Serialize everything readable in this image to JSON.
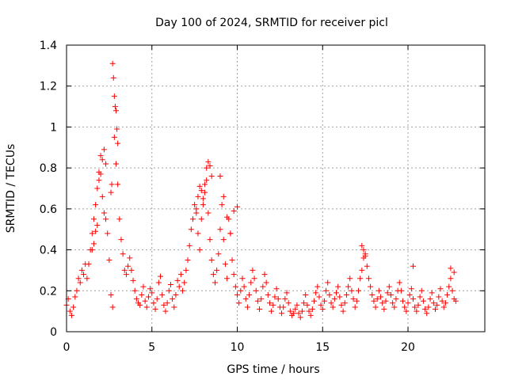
{
  "chart_data": {
    "type": "scatter",
    "title": "Day 100 of 2024, SRMTID for receiver picl",
    "xlabel": "GPS time / hours",
    "ylabel": "SRMTID / TECUs",
    "xlim": [
      0,
      24.5
    ],
    "ylim": [
      0,
      1.4
    ],
    "xticks": [
      0,
      5,
      10,
      15,
      20
    ],
    "xtick_labels": [
      "0",
      "5",
      "10",
      "15",
      "20"
    ],
    "yticks": [
      0,
      0.2,
      0.4,
      0.6,
      0.8,
      1,
      1.2,
      1.4
    ],
    "ytick_labels": [
      "0",
      "0.2",
      "0.4",
      "0.6",
      "0.8",
      "1",
      "1.2",
      "1.4"
    ],
    "grid": true,
    "marker": "+",
    "series_color": "#ff0000",
    "series": [
      {
        "name": "SRMTID",
        "x": [
          0.0,
          0.1,
          0.2,
          0.3,
          0.4,
          0.5,
          0.6,
          0.7,
          0.8,
          0.9,
          1.0,
          1.1,
          1.2,
          1.3,
          1.4,
          1.5,
          1.6,
          1.7,
          1.8,
          1.9,
          2.0,
          2.1,
          2.2,
          2.3,
          2.4,
          2.5,
          2.6,
          2.7,
          2.8,
          2.9,
          3.0,
          3.1,
          3.2,
          3.3,
          3.4,
          3.5,
          3.6,
          3.7,
          3.8,
          3.9,
          4.0,
          4.1,
          4.2,
          4.3,
          4.4,
          4.5,
          4.6,
          4.7,
          4.8,
          4.9,
          5.0,
          5.1,
          5.2,
          5.3,
          5.4,
          5.5,
          5.6,
          5.7,
          5.8,
          5.9,
          6.0,
          6.1,
          6.2,
          6.3,
          6.4,
          6.5,
          6.6,
          6.7,
          6.8,
          6.9,
          7.0,
          7.1,
          7.2,
          7.3,
          7.4,
          7.5,
          7.6,
          7.7,
          7.8,
          7.9,
          8.0,
          8.1,
          8.2,
          8.3,
          8.4,
          8.5,
          8.6,
          8.7,
          8.8,
          8.9,
          9.0,
          9.1,
          9.2,
          9.3,
          9.4,
          9.5,
          9.6,
          9.7,
          9.8,
          9.9,
          10.0,
          10.1,
          10.2,
          10.3,
          10.4,
          10.5,
          10.6,
          10.7,
          10.8,
          10.9,
          11.0,
          11.1,
          11.2,
          11.3,
          11.4,
          11.5,
          11.6,
          11.7,
          11.8,
          11.9,
          12.0,
          12.1,
          12.2,
          12.3,
          12.4,
          12.5,
          12.6,
          12.7,
          12.8,
          12.9,
          13.0,
          13.1,
          13.2,
          13.3,
          13.4,
          13.5,
          13.6,
          13.7,
          13.8,
          13.9,
          14.0,
          14.1,
          14.2,
          14.3,
          14.4,
          14.5,
          14.6,
          14.7,
          14.8,
          14.9,
          15.0,
          15.1,
          15.2,
          15.3,
          15.4,
          15.5,
          15.6,
          15.7,
          15.8,
          15.9,
          16.0,
          16.1,
          16.2,
          16.3,
          16.4,
          16.5,
          16.6,
          16.7,
          16.8,
          16.9,
          17.0,
          17.1,
          17.2,
          17.3,
          17.4,
          17.5,
          17.6,
          17.7,
          17.8,
          17.9,
          18.0,
          18.1,
          18.2,
          18.3,
          18.4,
          18.5,
          18.6,
          18.7,
          18.8,
          18.9,
          19.0,
          19.1,
          19.2,
          19.3,
          19.4,
          19.5,
          19.6,
          19.7,
          19.8,
          19.9,
          20.0,
          20.1,
          20.2,
          20.3,
          20.4,
          20.5,
          20.6,
          20.7,
          20.8,
          20.9,
          21.0,
          21.1,
          21.2,
          21.3,
          21.4,
          21.5,
          21.6,
          21.7,
          21.8,
          21.9,
          22.0,
          22.1,
          22.2,
          22.3,
          22.4,
          22.5,
          22.6,
          22.7,
          22.8,
          2.7,
          2.75,
          2.8,
          2.85,
          2.9,
          2.95,
          3.0,
          2.6,
          2.65,
          2.3,
          2.2,
          2.1,
          2.0,
          1.9,
          1.8,
          1.7,
          1.6,
          1.5,
          8.1,
          8.2,
          8.3,
          8.4,
          8.5,
          8.0,
          7.9,
          7.8,
          7.7,
          7.6,
          9.0,
          9.2,
          9.4,
          9.6,
          9.8,
          10.0,
          17.3,
          17.4,
          17.5,
          20.3,
          22.5,
          22.7
        ],
        "y": [
          0.13,
          0.16,
          0.1,
          0.08,
          0.12,
          0.17,
          0.2,
          0.26,
          0.24,
          0.3,
          0.28,
          0.33,
          0.26,
          0.33,
          0.4,
          0.48,
          0.55,
          0.62,
          0.7,
          0.78,
          0.86,
          0.66,
          0.58,
          0.55,
          0.48,
          0.35,
          0.18,
          0.12,
          0.95,
          0.82,
          0.72,
          0.55,
          0.45,
          0.38,
          0.3,
          0.28,
          0.32,
          0.36,
          0.3,
          0.25,
          0.2,
          0.16,
          0.14,
          0.13,
          0.18,
          0.22,
          0.15,
          0.12,
          0.17,
          0.21,
          0.19,
          0.14,
          0.11,
          0.16,
          0.24,
          0.27,
          0.18,
          0.13,
          0.1,
          0.14,
          0.2,
          0.23,
          0.16,
          0.12,
          0.18,
          0.25,
          0.22,
          0.28,
          0.2,
          0.24,
          0.3,
          0.35,
          0.42,
          0.5,
          0.55,
          0.62,
          0.58,
          0.48,
          0.4,
          0.55,
          0.65,
          0.72,
          0.8,
          0.58,
          0.45,
          0.35,
          0.28,
          0.24,
          0.3,
          0.38,
          0.5,
          0.62,
          0.45,
          0.33,
          0.26,
          0.55,
          0.48,
          0.35,
          0.28,
          0.22,
          0.18,
          0.14,
          0.2,
          0.26,
          0.22,
          0.16,
          0.12,
          0.18,
          0.24,
          0.3,
          0.26,
          0.2,
          0.15,
          0.11,
          0.16,
          0.22,
          0.28,
          0.24,
          0.18,
          0.14,
          0.1,
          0.13,
          0.17,
          0.21,
          0.16,
          0.12,
          0.09,
          0.12,
          0.16,
          0.19,
          0.14,
          0.1,
          0.08,
          0.09,
          0.11,
          0.13,
          0.09,
          0.07,
          0.1,
          0.14,
          0.18,
          0.13,
          0.1,
          0.08,
          0.11,
          0.15,
          0.19,
          0.22,
          0.17,
          0.13,
          0.11,
          0.15,
          0.2,
          0.24,
          0.18,
          0.14,
          0.12,
          0.16,
          0.19,
          0.22,
          0.17,
          0.13,
          0.1,
          0.14,
          0.18,
          0.22,
          0.26,
          0.2,
          0.16,
          0.12,
          0.15,
          0.2,
          0.26,
          0.3,
          0.36,
          0.38,
          0.32,
          0.26,
          0.22,
          0.18,
          0.15,
          0.12,
          0.16,
          0.2,
          0.17,
          0.14,
          0.11,
          0.15,
          0.19,
          0.22,
          0.18,
          0.14,
          0.12,
          0.16,
          0.2,
          0.24,
          0.2,
          0.15,
          0.12,
          0.1,
          0.14,
          0.18,
          0.21,
          0.16,
          0.12,
          0.1,
          0.13,
          0.17,
          0.2,
          0.15,
          0.11,
          0.09,
          0.12,
          0.16,
          0.19,
          0.14,
          0.11,
          0.13,
          0.17,
          0.21,
          0.15,
          0.12,
          0.14,
          0.18,
          0.22,
          0.26,
          0.2,
          0.16,
          0.15,
          1.31,
          1.24,
          1.15,
          1.1,
          1.08,
          0.99,
          0.92,
          0.68,
          0.72,
          0.82,
          0.89,
          0.84,
          0.77,
          0.74,
          0.52,
          0.49,
          0.43,
          0.4,
          0.68,
          0.74,
          0.83,
          0.81,
          0.76,
          0.62,
          0.69,
          0.71,
          0.66,
          0.6,
          0.76,
          0.66,
          0.56,
          0.48,
          0.59,
          0.61,
          0.42,
          0.4,
          0.37,
          0.32,
          0.31,
          0.29
        ]
      }
    ]
  }
}
